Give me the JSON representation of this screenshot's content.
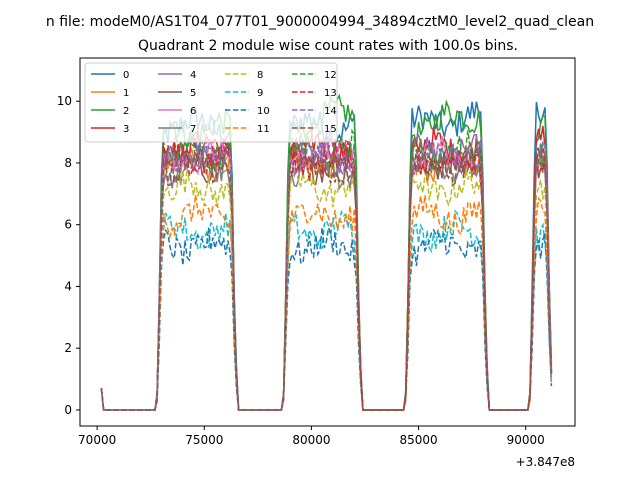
{
  "chart_data": {
    "type": "line",
    "suptitle": "n file: modeM0/AS1T04_077T01_9000004994_34894cztM0_level2_quad_clean",
    "title": "Quadrant 2 module wise count rates with 100.0s bins.",
    "xlabel": "",
    "ylabel": "",
    "x_offset_label": "+3.847e8",
    "xlim": [
      69200,
      92300
    ],
    "ylim": [
      -0.52,
      11.4
    ],
    "xticks": [
      70000,
      75000,
      80000,
      85000,
      90000
    ],
    "xtick_labels": [
      "70000",
      "75000",
      "80000",
      "85000",
      "90000"
    ],
    "yticks": [
      0,
      2,
      4,
      6,
      8,
      10
    ],
    "ytick_labels": [
      "0",
      "2",
      "4",
      "6",
      "8",
      "10"
    ],
    "legend_position": "upper-left",
    "legend_columns": 4,
    "on_windows": [
      [
        72800,
        76500
      ],
      [
        78700,
        82300
      ],
      [
        84400,
        88200
      ],
      [
        90200,
        91200
      ]
    ],
    "start_value": 0.7,
    "series": [
      {
        "name": "0",
        "color": "#1f77b4",
        "dash": false,
        "level": 9.2,
        "trend": [
          0,
          0,
          0.3,
          0.7
        ]
      },
      {
        "name": "1",
        "color": "#ff7f0e",
        "dash": false,
        "level": 8.0,
        "trend": [
          0,
          0,
          -0.2,
          0.2
        ]
      },
      {
        "name": "2",
        "color": "#2ca02c",
        "dash": false,
        "level": 9.1,
        "trend": [
          0,
          0.6,
          0.6,
          0.4
        ]
      },
      {
        "name": "3",
        "color": "#d62728",
        "dash": false,
        "level": 8.5,
        "trend": [
          0,
          0,
          0,
          0.2
        ]
      },
      {
        "name": "4",
        "color": "#9467bd",
        "dash": false,
        "level": 8.3,
        "trend": [
          0,
          0,
          0,
          0
        ]
      },
      {
        "name": "5",
        "color": "#8c564b",
        "dash": false,
        "level": 8.0,
        "trend": [
          0,
          0,
          0,
          0
        ]
      },
      {
        "name": "6",
        "color": "#e377c2",
        "dash": false,
        "level": 8.2,
        "trend": [
          0,
          0,
          0,
          0
        ]
      },
      {
        "name": "7",
        "color": "#7f7f7f",
        "dash": false,
        "level": 7.8,
        "trend": [
          0,
          0,
          0,
          0
        ]
      },
      {
        "name": "8",
        "color": "#bcbd22",
        "dash": true,
        "level": 7.2,
        "trend": [
          0,
          0,
          0,
          0
        ]
      },
      {
        "name": "9",
        "color": "#17becf",
        "dash": true,
        "level": 5.8,
        "trend": [
          0,
          0,
          0,
          0
        ]
      },
      {
        "name": "10",
        "color": "#1f77b4",
        "dash": true,
        "level": 5.3,
        "trend": [
          0,
          0,
          0,
          0
        ]
      },
      {
        "name": "11",
        "color": "#ff7f0e",
        "dash": true,
        "level": 6.3,
        "trend": [
          0,
          0,
          0,
          0
        ]
      },
      {
        "name": "12",
        "color": "#2ca02c",
        "dash": true,
        "level": 8.4,
        "trend": [
          0,
          0,
          0,
          0
        ]
      },
      {
        "name": "13",
        "color": "#d62728",
        "dash": true,
        "level": 8.1,
        "trend": [
          0,
          0,
          0,
          0
        ]
      },
      {
        "name": "14",
        "color": "#9467bd",
        "dash": true,
        "level": 8.2,
        "trend": [
          0,
          0,
          0,
          0
        ]
      },
      {
        "name": "15",
        "color": "#8c564b",
        "dash": true,
        "level": 7.9,
        "trend": [
          0,
          0,
          0,
          0
        ]
      }
    ]
  }
}
